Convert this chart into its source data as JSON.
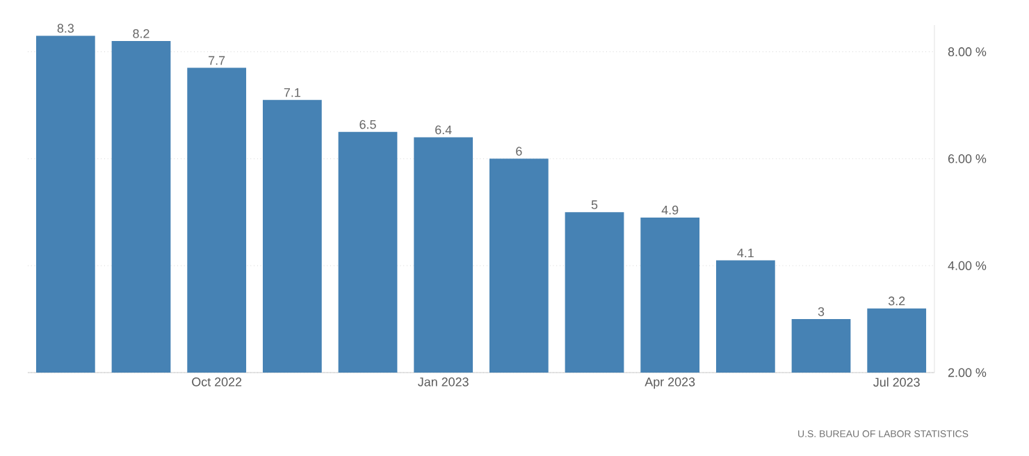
{
  "chart_data": {
    "type": "bar",
    "categories": [
      null,
      null,
      "Oct 2022",
      null,
      null,
      "Jan 2023",
      null,
      null,
      "Apr 2023",
      null,
      null,
      "Jul 2023"
    ],
    "values": [
      8.3,
      8.2,
      7.7,
      7.1,
      6.5,
      6.4,
      6,
      5,
      4.9,
      4.1,
      3,
      3.2
    ],
    "color": "#4682b4",
    "ylim": [
      2,
      8.5
    ],
    "yticks": [
      {
        "value": 2,
        "label": "2.00 %"
      },
      {
        "value": 4,
        "label": "4.00 %"
      },
      {
        "value": 6,
        "label": "6.00 %"
      },
      {
        "value": 8,
        "label": "8.00 %"
      }
    ],
    "grid": "y",
    "data_labels": true,
    "annotations": [
      "U.S. BUREAU OF LABOR STATISTICS"
    ]
  }
}
